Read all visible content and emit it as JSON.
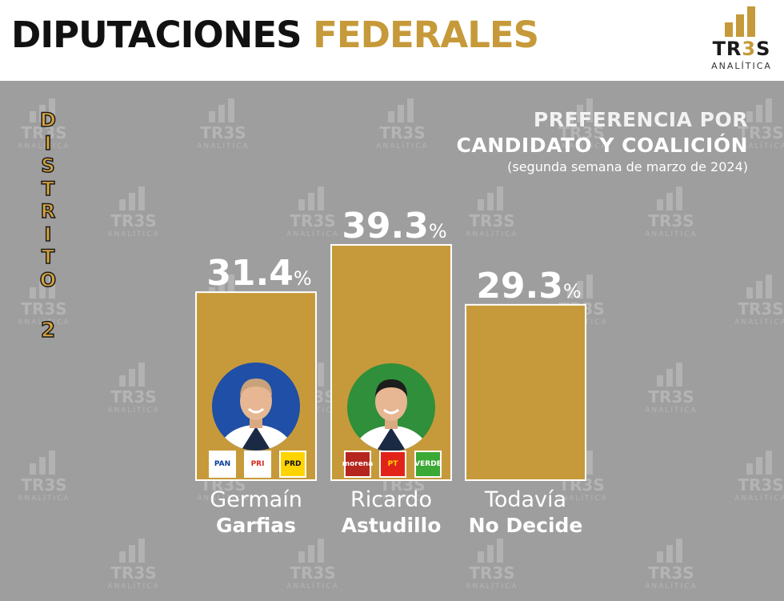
{
  "header": {
    "title_part1": "DIPUTACIONES",
    "title_part2": "FEDERALES",
    "logo_name_a": "TR",
    "logo_name_b": "3",
    "logo_name_c": "S",
    "logo_sub": "ANALÍTICA"
  },
  "watermark": {
    "name": "TR3S",
    "sub": "ANALÍTICA"
  },
  "district": {
    "letters": [
      "D",
      "I",
      "S",
      "T",
      "R",
      "I",
      "T",
      "O"
    ],
    "number": "2"
  },
  "colors": {
    "bar": "#c69a3a",
    "bar_border": "#ffffff",
    "accent": "#c69a3a",
    "background": "#9e9e9e"
  },
  "chart_data": {
    "type": "bar",
    "title": "PREFERENCIA POR",
    "subtitle": "CANDIDATO Y COALICIÓN",
    "note": "(segunda semana de marzo de 2024)",
    "categories": [
      "Germaín Garfias",
      "Ricardo Astudillo",
      "Todavía No Decide"
    ],
    "values": [
      31.4,
      39.3,
      29.3
    ],
    "value_labels": [
      "31.4",
      "39.3",
      "29.3"
    ],
    "unit": "%",
    "ylim": [
      0,
      40
    ],
    "legend": "none",
    "grid": false,
    "candidates": [
      {
        "first": "Germaín",
        "last": "Garfias",
        "photo_icon": "candidate-photo-icon",
        "photo_bg": "#1f4fa6",
        "parties": [
          {
            "label": "PAN",
            "icon": "pan-logo-icon",
            "bg": "#ffffff",
            "fg": "#0a3c96"
          },
          {
            "label": "PRI",
            "icon": "pri-logo-icon",
            "bg": "#ffffff",
            "fg": "#d52b1e"
          },
          {
            "label": "PRD",
            "icon": "prd-logo-icon",
            "bg": "#ffd400",
            "fg": "#111111"
          }
        ]
      },
      {
        "first": "Ricardo",
        "last": "Astudillo",
        "photo_icon": "candidate-photo-icon",
        "photo_bg": "#2f8f3a",
        "parties": [
          {
            "label": "morena",
            "icon": "morena-logo-icon",
            "bg": "#b5261e",
            "fg": "#ffffff"
          },
          {
            "label": "PT",
            "icon": "pt-logo-icon",
            "bg": "#e2231a",
            "fg": "#ffd400"
          },
          {
            "label": "VERDE",
            "icon": "verde-logo-icon",
            "bg": "#3aa935",
            "fg": "#ffffff"
          }
        ]
      },
      {
        "first": "Todavía",
        "last": "No Decide",
        "photo_icon": "",
        "photo_bg": "",
        "parties": []
      }
    ]
  }
}
